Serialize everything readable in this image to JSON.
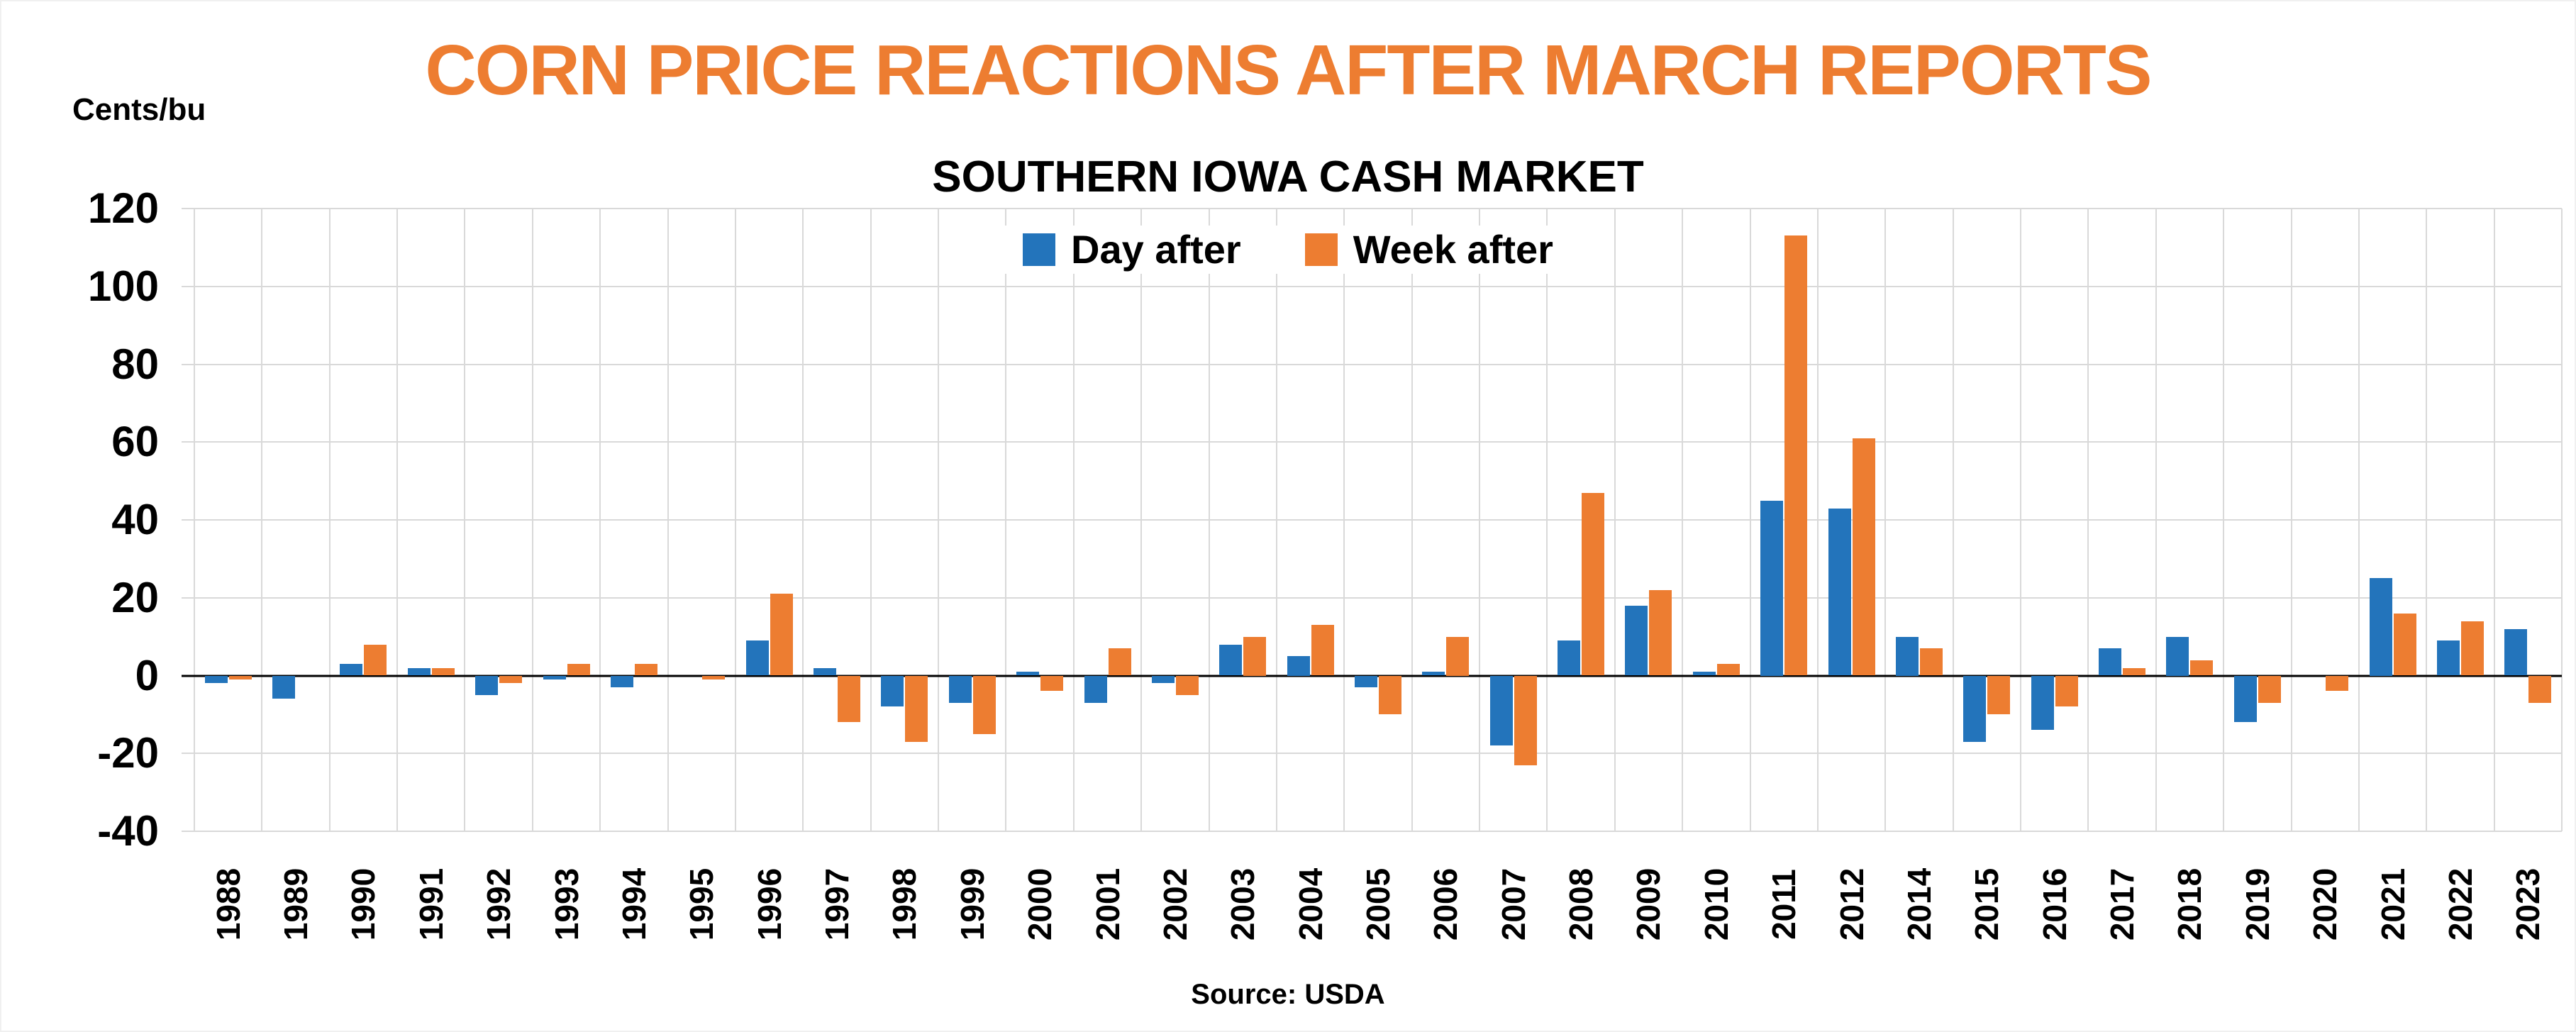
{
  "colors": {
    "title_orange": "#ED7D31",
    "day_after_blue": "#2374BB",
    "week_after_orange": "#ED7D31",
    "gridline": "#D9D9D9",
    "zero_line": "#000000"
  },
  "chart_data": {
    "type": "bar",
    "title": "CORN PRICE REACTIONS AFTER MARCH REPORTS",
    "subtitle": "SOUTHERN IOWA CASH MARKET",
    "ylabel": "Cents/bu",
    "xlabel": "",
    "source": "Source: USDA",
    "ylim": [
      -40,
      120
    ],
    "yticks": [
      120,
      100,
      80,
      60,
      40,
      20,
      0,
      -20,
      -40
    ],
    "grid": true,
    "legend_position": "top-center-inside",
    "categories": [
      "1988",
      "1989",
      "1990",
      "1991",
      "1992",
      "1993",
      "1994",
      "1995",
      "1996",
      "1997",
      "1998",
      "1999",
      "2000",
      "2001",
      "2002",
      "2003",
      "2004",
      "2005",
      "2006",
      "2007",
      "2008",
      "2009",
      "2010",
      "2011",
      "2012",
      "2014",
      "2015",
      "2016",
      "2017",
      "2018",
      "2019",
      "2020",
      "2021",
      "2022",
      "2023"
    ],
    "series": [
      {
        "name": "Day after",
        "color": "#2374BB",
        "values": [
          -2,
          -6,
          3,
          2,
          -5,
          -1,
          -3,
          0,
          9,
          2,
          -8,
          -7,
          1,
          -7,
          -2,
          8,
          5,
          -3,
          1,
          -18,
          9,
          18,
          1,
          45,
          43,
          10,
          -17,
          -14,
          7,
          10,
          -12,
          0,
          25,
          9,
          12
        ]
      },
      {
        "name": "Week after",
        "color": "#ED7D31",
        "values": [
          -1,
          0,
          8,
          2,
          -2,
          3,
          3,
          -1,
          21,
          -12,
          -17,
          -15,
          -4,
          7,
          -5,
          10,
          13,
          -10,
          10,
          -23,
          47,
          22,
          3,
          113,
          61,
          7,
          -10,
          -8,
          2,
          4,
          -7,
          -4,
          16,
          14,
          -7
        ]
      }
    ]
  }
}
